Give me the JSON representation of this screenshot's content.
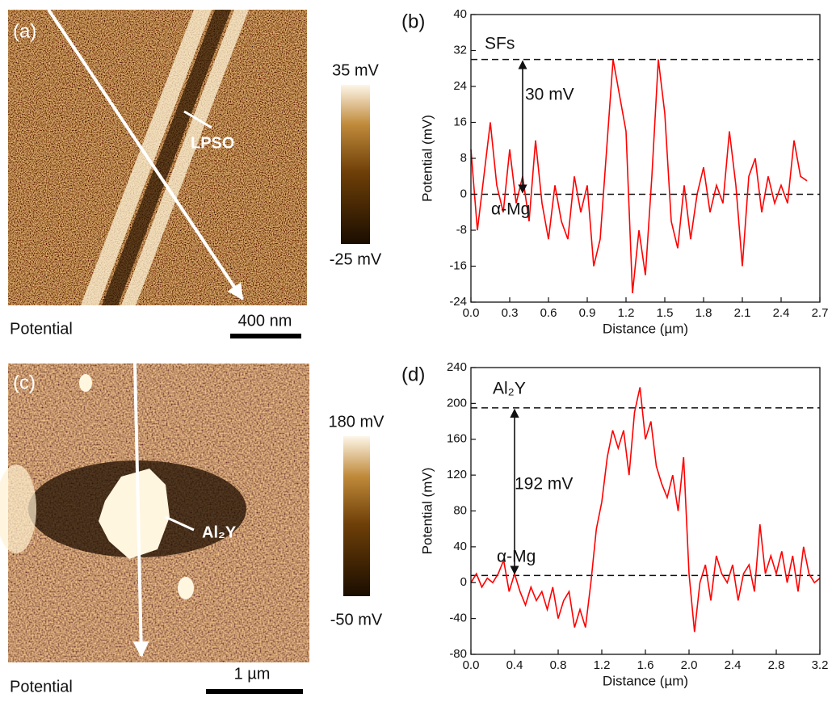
{
  "image_panels": [
    {
      "label": "(a)",
      "caption": "Potential",
      "scale_bar": "400 nm",
      "colorbar_max": "35 mV",
      "colorbar_min": "-25 mV",
      "feature": "LPSO"
    },
    {
      "label": "(c)",
      "caption": "Potential",
      "scale_bar": "1 µm",
      "colorbar_max": "180 mV",
      "colorbar_min": "-50 mV",
      "feature": "Al₂Y"
    }
  ],
  "chart_data": [
    {
      "type": "line",
      "panel_label": "(b)",
      "ylabel": "Potential (mV)",
      "xlabel": "Distance (µm)",
      "color": "#ff0000",
      "xlim": [
        0,
        2.7
      ],
      "xticks": [
        {
          "value": 0,
          "label": "0.0"
        },
        0.3,
        0.6,
        0.9,
        1.2,
        1.5,
        1.8,
        2.1,
        2.4,
        2.7
      ],
      "ylim": [
        -24,
        40
      ],
      "yticks": [
        -24,
        -16,
        -8,
        0,
        8,
        16,
        24,
        32,
        40
      ],
      "hlines": [
        30,
        0
      ],
      "annotations": [
        "SFs",
        "30 mV",
        "α-Mg"
      ],
      "x": [
        0,
        0.05,
        0.1,
        0.15,
        0.2,
        0.25,
        0.3,
        0.35,
        0.4,
        0.45,
        0.5,
        0.55,
        0.6,
        0.65,
        0.7,
        0.75,
        0.8,
        0.85,
        0.9,
        0.95,
        1.0,
        1.05,
        1.1,
        1.15,
        1.2,
        1.25,
        1.3,
        1.35,
        1.4,
        1.45,
        1.5,
        1.55,
        1.6,
        1.65,
        1.7,
        1.75,
        1.8,
        1.85,
        1.9,
        1.95,
        2.0,
        2.05,
        2.1,
        2.15,
        2.2,
        2.25,
        2.3,
        2.35,
        2.4,
        2.45,
        2.5,
        2.55,
        2.6
      ],
      "values": [
        10,
        -8,
        4,
        16,
        2,
        -4,
        10,
        -2,
        4,
        -6,
        12,
        -2,
        -10,
        2,
        -6,
        -10,
        4,
        -4,
        2,
        -16,
        -10,
        10,
        30,
        22,
        14,
        -22,
        -8,
        -18,
        4,
        30,
        18,
        -6,
        -12,
        2,
        -10,
        0,
        6,
        -4,
        2,
        -2,
        14,
        2,
        -16,
        4,
        8,
        -4,
        4,
        -2,
        2,
        -2,
        12,
        4,
        3
      ]
    },
    {
      "type": "line",
      "panel_label": "(d)",
      "ylabel": "Potential (mV)",
      "xlabel": "Distance (µm)",
      "color": "#ff0000",
      "xlim": [
        0,
        3.2
      ],
      "xticks": [
        {
          "value": 0,
          "label": "0.0"
        },
        0.4,
        0.8,
        1.2,
        1.6,
        {
          "value": 2,
          "label": "2.0"
        },
        2.4,
        2.8,
        3.2
      ],
      "ylim": [
        -80,
        240
      ],
      "yticks": [
        -80,
        -40,
        0,
        40,
        80,
        120,
        160,
        200,
        240
      ],
      "hlines": [
        195,
        8
      ],
      "annotations": [
        "Al₂Y",
        "192 mV",
        "α-Mg"
      ],
      "x": [
        0,
        0.05,
        0.1,
        0.15,
        0.2,
        0.25,
        0.3,
        0.35,
        0.4,
        0.45,
        0.5,
        0.55,
        0.6,
        0.65,
        0.7,
        0.75,
        0.8,
        0.85,
        0.9,
        0.95,
        1.0,
        1.05,
        1.1,
        1.15,
        1.2,
        1.25,
        1.3,
        1.35,
        1.4,
        1.45,
        1.5,
        1.55,
        1.6,
        1.65,
        1.7,
        1.75,
        1.8,
        1.85,
        1.9,
        1.95,
        2.0,
        2.05,
        2.1,
        2.15,
        2.2,
        2.25,
        2.3,
        2.35,
        2.4,
        2.45,
        2.5,
        2.55,
        2.6,
        2.65,
        2.7,
        2.75,
        2.8,
        2.85,
        2.9,
        2.95,
        3.0,
        3.05,
        3.1,
        3.15,
        3.2
      ],
      "values": [
        0,
        10,
        -5,
        5,
        0,
        10,
        25,
        -10,
        10,
        -10,
        -25,
        -5,
        -20,
        -10,
        -30,
        -5,
        -40,
        -20,
        -10,
        -50,
        -30,
        -50,
        0,
        60,
        90,
        140,
        170,
        150,
        170,
        120,
        190,
        218,
        160,
        180,
        130,
        110,
        95,
        120,
        80,
        140,
        10,
        -55,
        0,
        20,
        -20,
        30,
        10,
        0,
        20,
        -20,
        10,
        20,
        -10,
        65,
        10,
        30,
        10,
        35,
        0,
        30,
        -10,
        40,
        10,
        0,
        5
      ]
    }
  ]
}
